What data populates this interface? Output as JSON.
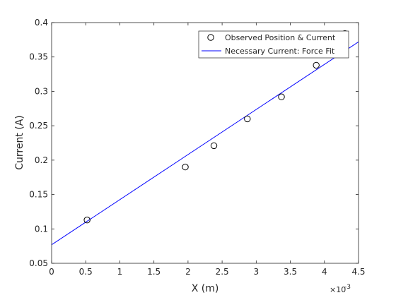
{
  "chart_data": {
    "type": "scatter",
    "title": "",
    "xlabel": "X (m)",
    "ylabel": "Current (A)",
    "x_exponent_label": "×10",
    "x_exponent_power": "-3",
    "xlim": [
      0,
      0.0045
    ],
    "ylim": [
      0.05,
      0.4
    ],
    "x_ticks": [
      {
        "value": 0.0,
        "label": "0"
      },
      {
        "value": 0.0005,
        "label": "0.5"
      },
      {
        "value": 0.001,
        "label": "1"
      },
      {
        "value": 0.0015,
        "label": "1.5"
      },
      {
        "value": 0.002,
        "label": "2"
      },
      {
        "value": 0.0025,
        "label": "2.5"
      },
      {
        "value": 0.003,
        "label": "3"
      },
      {
        "value": 0.0035,
        "label": "3.5"
      },
      {
        "value": 0.004,
        "label": "4"
      },
      {
        "value": 0.0045,
        "label": "4.5"
      }
    ],
    "y_ticks": [
      {
        "value": 0.05,
        "label": "0.05"
      },
      {
        "value": 0.1,
        "label": "0.1"
      },
      {
        "value": 0.15,
        "label": "0.15"
      },
      {
        "value": 0.2,
        "label": "0.2"
      },
      {
        "value": 0.25,
        "label": "0.25"
      },
      {
        "value": 0.3,
        "label": "0.3"
      },
      {
        "value": 0.35,
        "label": "0.35"
      },
      {
        "value": 0.4,
        "label": "0.4"
      }
    ],
    "grid": false,
    "legend_position": "top-right",
    "series": [
      {
        "name": "Observed Position & Current",
        "kind": "markers",
        "marker": "open-circle",
        "color": "#000000",
        "x": [
          0.00052,
          0.00196,
          0.00238,
          0.00287,
          0.00337,
          0.00388,
          0.0043
        ],
        "y": [
          0.113,
          0.19,
          0.221,
          0.26,
          0.292,
          0.338,
          0.384
        ]
      },
      {
        "name": "Necessary Current: Force Fit",
        "kind": "line",
        "color": "#0000ff",
        "x": [
          0.0,
          0.0045
        ],
        "y": [
          0.077,
          0.372
        ]
      }
    ]
  }
}
